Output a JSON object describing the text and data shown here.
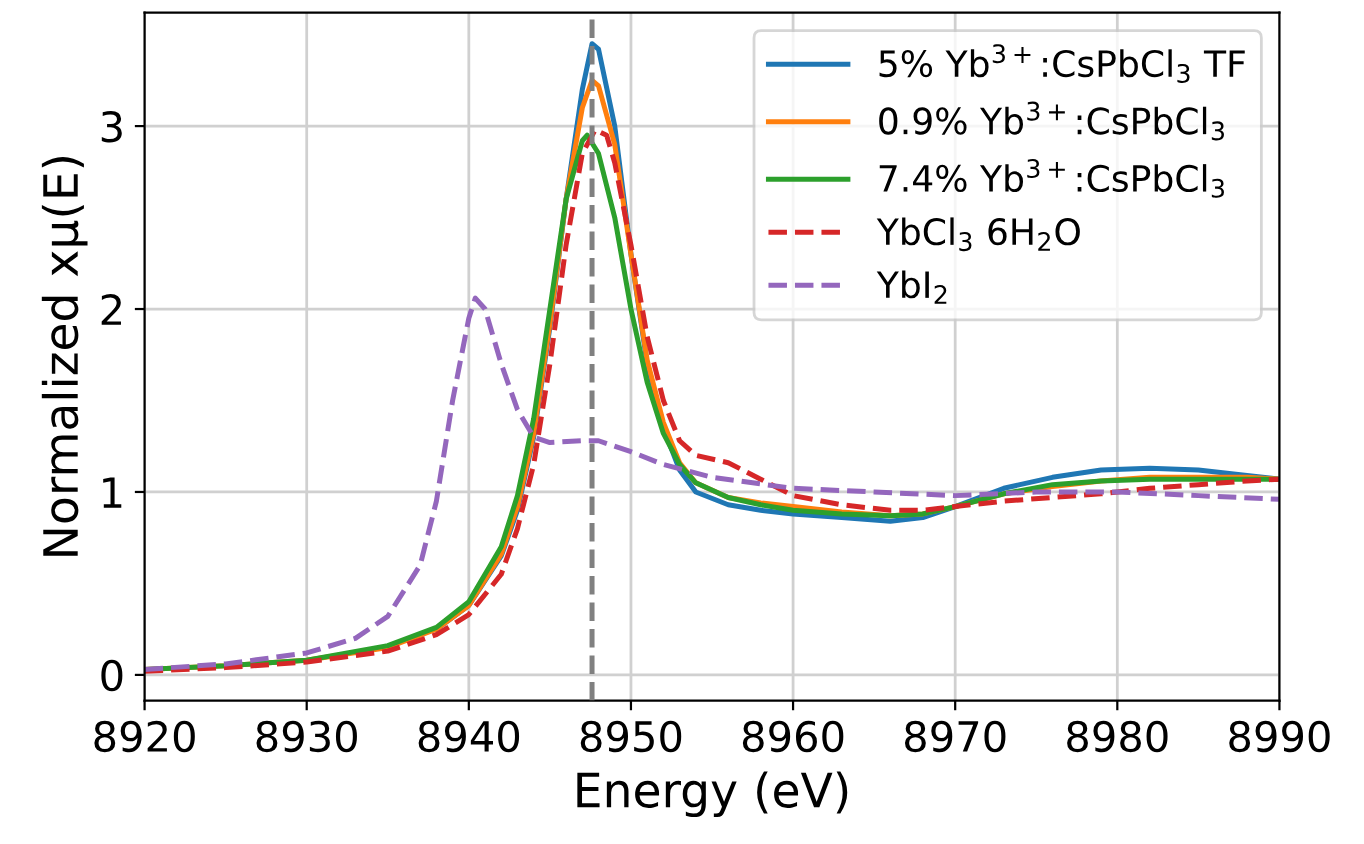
{
  "chart_data": {
    "type": "line",
    "xlabel": "Energy (eV)",
    "ylabel": "Normalized xμ(E)",
    "xlim": [
      8920,
      8990
    ],
    "ylim": [
      -0.14,
      3.62
    ],
    "xticks": [
      8920,
      8930,
      8940,
      8950,
      8960,
      8970,
      8980,
      8990
    ],
    "yticks": [
      0,
      1,
      2,
      3
    ],
    "grid": true,
    "legend": "top right",
    "marker": "none",
    "ref_lines": [
      {
        "axis": "x",
        "value": 8947.6,
        "color": "#808080",
        "line_style": "dashed"
      }
    ],
    "series": [
      {
        "name": "5% Yb$^{3+}$:CsPbCl$_{3}$ TF",
        "color": "#1f77b4",
        "line_style": "solid",
        "x": [
          8938,
          8940,
          8942,
          8943,
          8944,
          8945,
          8946,
          8947,
          8947.6,
          8948,
          8949,
          8950,
          8951,
          8952,
          8953,
          8954,
          8956,
          8958,
          8960,
          8963,
          8966,
          8968,
          8970,
          8973,
          8976,
          8979,
          8982,
          8985,
          8988,
          8990
        ],
        "values": [
          0.25,
          0.38,
          0.65,
          0.9,
          1.3,
          1.9,
          2.6,
          3.2,
          3.45,
          3.42,
          3.0,
          2.3,
          1.7,
          1.35,
          1.12,
          1.0,
          0.93,
          0.9,
          0.88,
          0.86,
          0.84,
          0.86,
          0.92,
          1.02,
          1.08,
          1.12,
          1.13,
          1.12,
          1.09,
          1.07
        ]
      },
      {
        "name": "0.9% Yb$^{3+}$:CsPbCl$_{3}$",
        "color": "#ff7f0e",
        "line_style": "solid",
        "x": [
          8920,
          8925,
          8930,
          8935,
          8938,
          8940,
          8942,
          8943,
          8944,
          8945,
          8946,
          8947,
          8947.6,
          8948,
          8949,
          8950,
          8951,
          8952,
          8953,
          8954,
          8956,
          8958,
          8960,
          8963,
          8966,
          8968,
          8970,
          8973,
          8976,
          8979,
          8982,
          8985,
          8988,
          8990
        ],
        "values": [
          0.03,
          0.05,
          0.08,
          0.15,
          0.25,
          0.38,
          0.66,
          0.92,
          1.32,
          1.92,
          2.6,
          3.1,
          3.25,
          3.22,
          2.9,
          2.3,
          1.72,
          1.38,
          1.16,
          1.05,
          0.97,
          0.94,
          0.92,
          0.89,
          0.87,
          0.88,
          0.92,
          0.99,
          1.03,
          1.06,
          1.08,
          1.08,
          1.08,
          1.07
        ]
      },
      {
        "name": "7.4% Yb$^{3+}$:CsPbCl$_{3}$",
        "color": "#2ca02c",
        "line_style": "solid",
        "x": [
          8920,
          8925,
          8930,
          8935,
          8938,
          8940,
          8942,
          8943,
          8944,
          8945,
          8946,
          8947,
          8947.3,
          8948,
          8949,
          8950,
          8951,
          8952,
          8953,
          8954,
          8956,
          8958,
          8960,
          8963,
          8966,
          8968,
          8970,
          8973,
          8976,
          8979,
          8982,
          8985,
          8988,
          8990
        ],
        "values": [
          0.03,
          0.05,
          0.08,
          0.16,
          0.26,
          0.4,
          0.7,
          0.98,
          1.4,
          2.0,
          2.6,
          2.92,
          2.95,
          2.85,
          2.5,
          2.0,
          1.6,
          1.32,
          1.15,
          1.05,
          0.97,
          0.93,
          0.9,
          0.88,
          0.87,
          0.88,
          0.92,
          0.99,
          1.04,
          1.06,
          1.07,
          1.07,
          1.07,
          1.07
        ]
      },
      {
        "name": "YbCl$_{3}$ 6H$_{2}$O",
        "color": "#d62728",
        "line_style": "dashed",
        "x": [
          8920,
          8925,
          8930,
          8935,
          8938,
          8940,
          8942,
          8943,
          8944,
          8945,
          8946,
          8947,
          8947.8,
          8948.5,
          8949,
          8950,
          8951,
          8952,
          8953,
          8954,
          8956,
          8958,
          8960,
          8963,
          8966,
          8968,
          8970,
          8973,
          8976,
          8979,
          8982,
          8985,
          8988,
          8990
        ],
        "values": [
          0.02,
          0.04,
          0.07,
          0.13,
          0.22,
          0.33,
          0.55,
          0.8,
          1.15,
          1.7,
          2.35,
          2.85,
          2.98,
          2.95,
          2.8,
          2.35,
          1.85,
          1.5,
          1.28,
          1.2,
          1.16,
          1.07,
          0.98,
          0.93,
          0.9,
          0.9,
          0.92,
          0.95,
          0.97,
          0.99,
          1.02,
          1.04,
          1.06,
          1.07
        ]
      },
      {
        "name": "YbI$_{2}$",
        "color": "#9467bd",
        "line_style": "dashed",
        "x": [
          8920,
          8925,
          8930,
          8933,
          8935,
          8937,
          8938,
          8939,
          8940,
          8940.4,
          8941,
          8942,
          8943,
          8944,
          8945,
          8947,
          8948,
          8950,
          8952,
          8955,
          8960,
          8965,
          8970,
          8975,
          8980,
          8985,
          8990
        ],
        "values": [
          0.03,
          0.06,
          0.12,
          0.2,
          0.32,
          0.6,
          0.95,
          1.5,
          1.95,
          2.06,
          2.0,
          1.7,
          1.45,
          1.3,
          1.27,
          1.28,
          1.28,
          1.22,
          1.15,
          1.08,
          1.02,
          1.0,
          0.98,
          1.0,
          1.0,
          0.98,
          0.96
        ]
      }
    ]
  }
}
